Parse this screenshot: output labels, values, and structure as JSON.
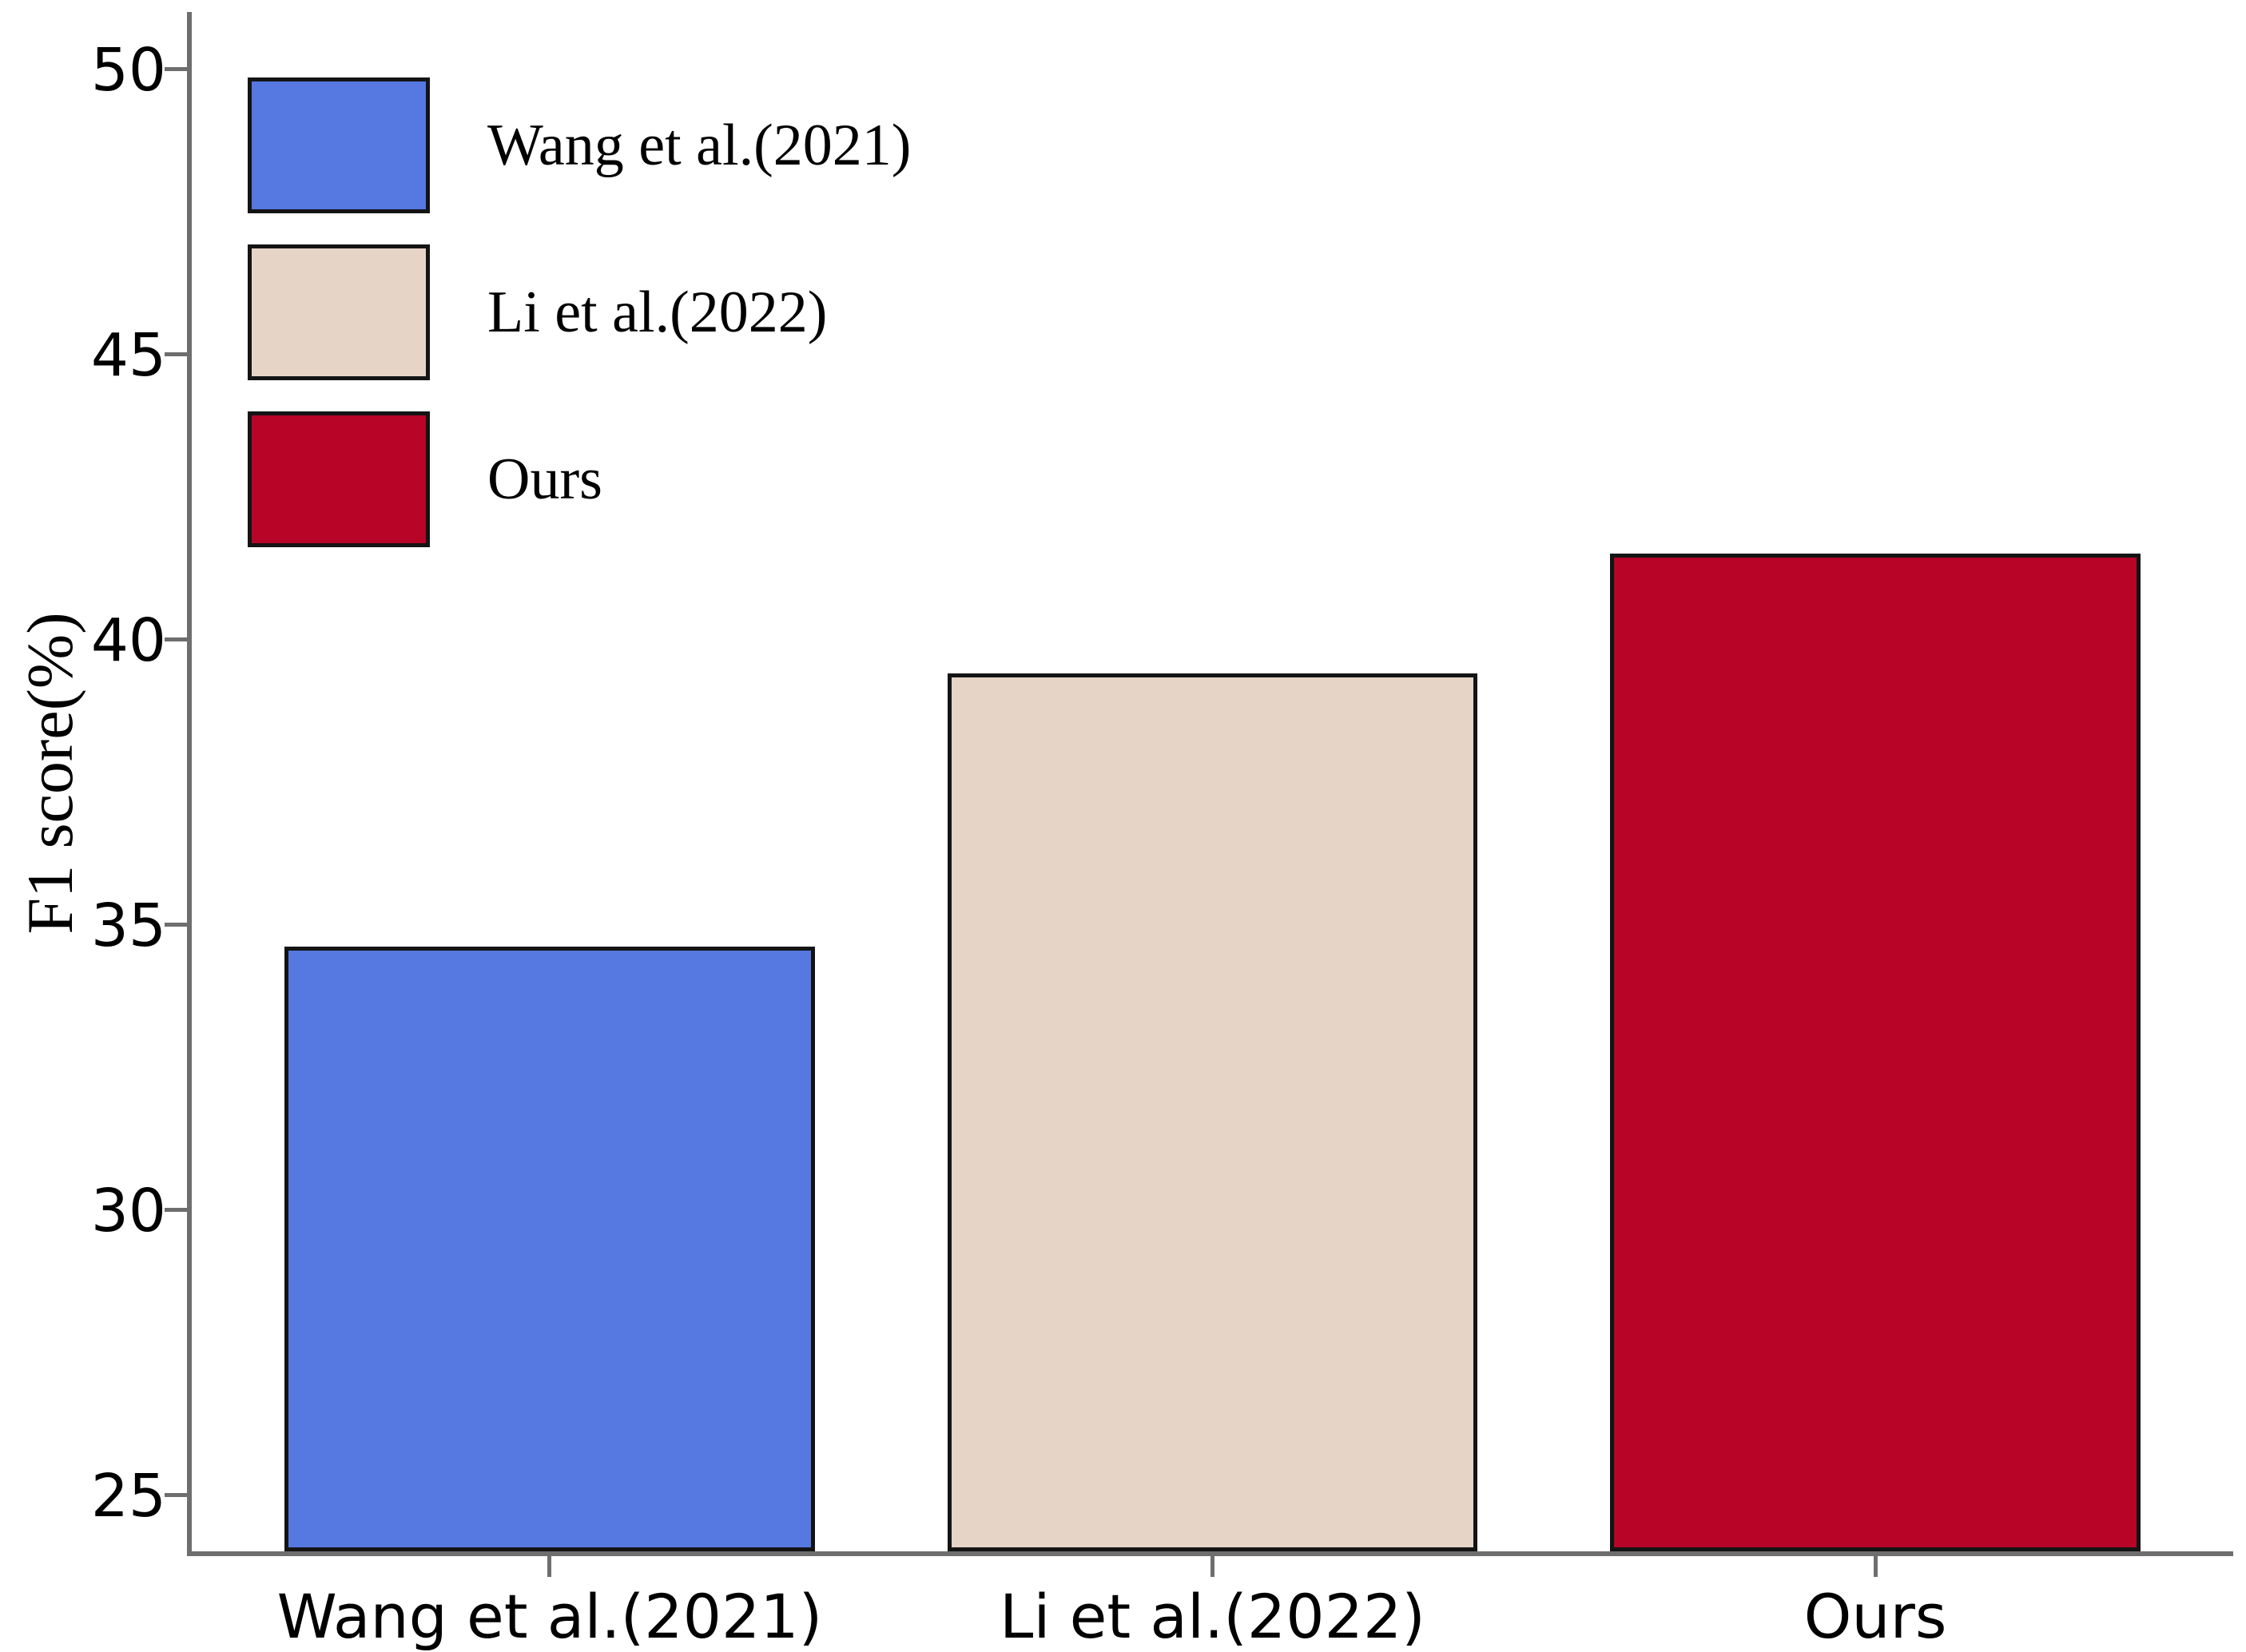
{
  "figure": {
    "background": "#ffffff"
  },
  "chart_data": {
    "type": "bar",
    "title": "",
    "xlabel": "",
    "ylabel": "F1 score(%)",
    "categories": [
      "Wang et al.(2021)",
      "Li et al.(2022)",
      "Ours"
    ],
    "values": [
      34.6,
      39.4,
      41.5
    ],
    "bar_colors": [
      "#5578e1",
      "#e6d4c7",
      "#b70427"
    ],
    "bar_edge_color": "#141414",
    "ylim": [
      24,
      51
    ],
    "yticks": [
      25,
      30,
      35,
      40,
      45,
      50
    ],
    "grid": false,
    "axis_color": "#6e6e6e",
    "text_color": "#000000",
    "legend": {
      "position": "upper left",
      "entries": [
        {
          "label": "Wang et al.(2021)",
          "color": "#5578e1"
        },
        {
          "label": "Li et al.(2022)",
          "color": "#e6d4c7"
        },
        {
          "label": "Ours",
          "color": "#b70427"
        }
      ]
    }
  }
}
